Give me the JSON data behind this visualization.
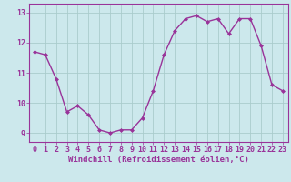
{
  "x": [
    0,
    1,
    2,
    3,
    4,
    5,
    6,
    7,
    8,
    9,
    10,
    11,
    12,
    13,
    14,
    15,
    16,
    17,
    18,
    19,
    20,
    21,
    22,
    23
  ],
  "y": [
    11.7,
    11.6,
    10.8,
    9.7,
    9.9,
    9.6,
    9.1,
    9.0,
    9.1,
    9.1,
    9.5,
    10.4,
    11.6,
    12.4,
    12.8,
    12.9,
    12.7,
    12.8,
    12.3,
    12.8,
    12.8,
    11.9,
    10.6,
    10.4
  ],
  "line_color": "#993399",
  "marker": "D",
  "marker_size": 2.0,
  "bg_color": "#cce8ec",
  "grid_color": "#aacccc",
  "xlabel": "Windchill (Refroidissement éolien,°C)",
  "xlabel_fontsize": 6.5,
  "ylim": [
    8.7,
    13.3
  ],
  "xlim": [
    -0.5,
    23.5
  ],
  "yticks": [
    9,
    10,
    11,
    12,
    13
  ],
  "xticks": [
    0,
    1,
    2,
    3,
    4,
    5,
    6,
    7,
    8,
    9,
    10,
    11,
    12,
    13,
    14,
    15,
    16,
    17,
    18,
    19,
    20,
    21,
    22,
    23
  ],
  "tick_fontsize": 6.0,
  "line_width": 1.0,
  "spine_color": "#993399",
  "tick_color": "#993399"
}
